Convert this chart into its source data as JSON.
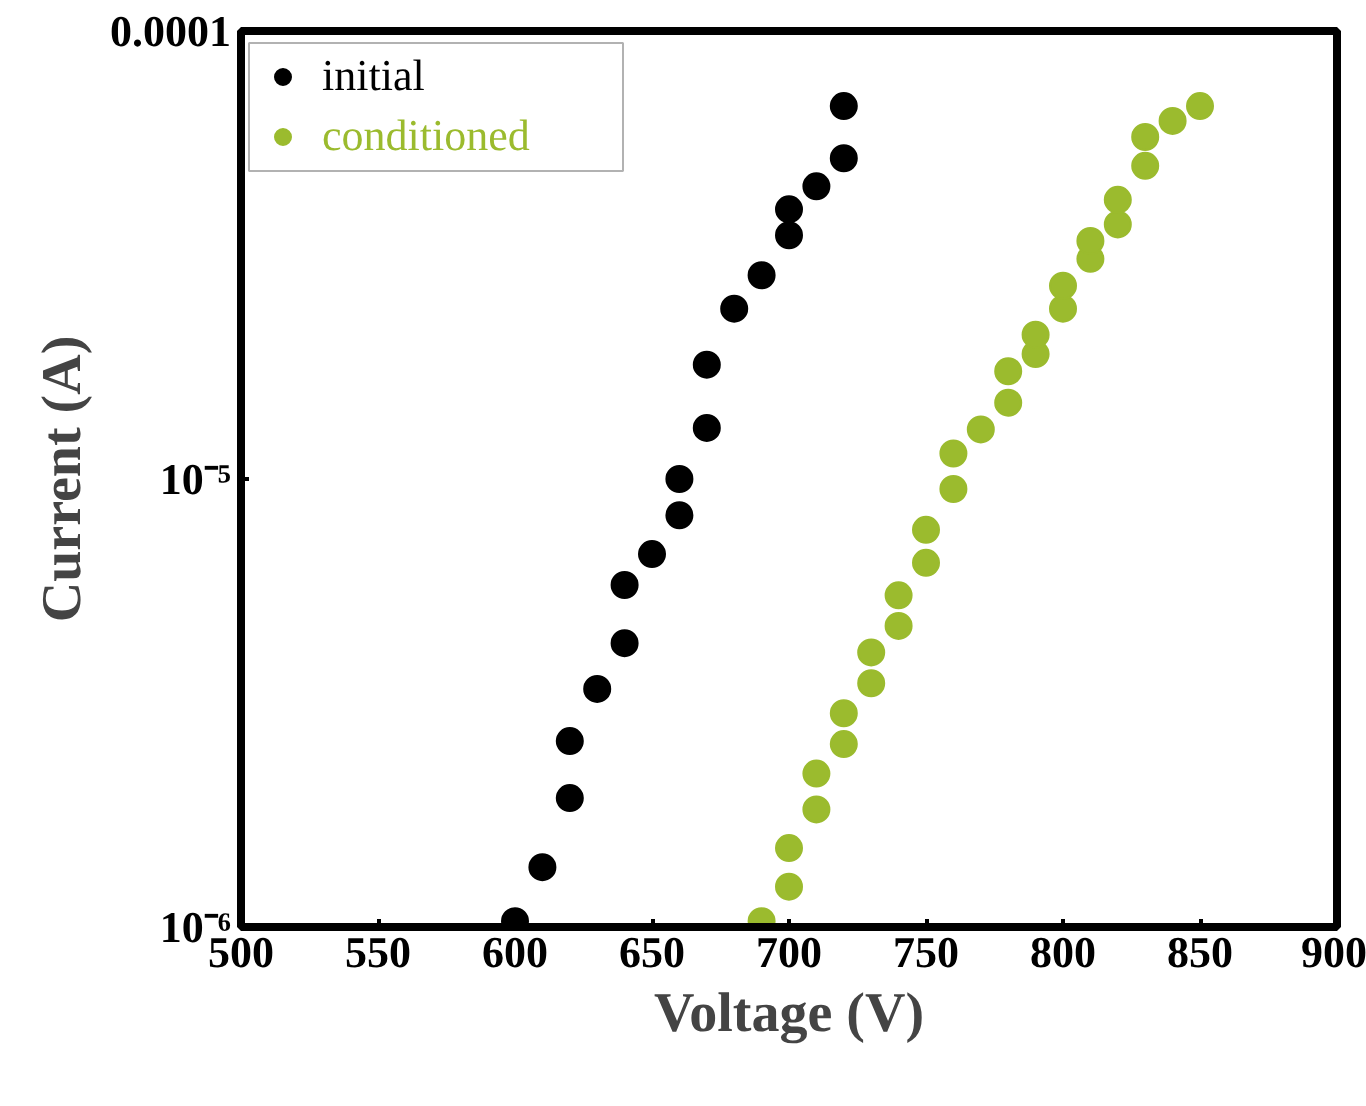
{
  "chart_data": {
    "type": "scatter",
    "xlabel": "Voltage (V)",
    "ylabel": "Current (A)",
    "xlim": [
      500,
      900
    ],
    "xticks": [
      500,
      550,
      600,
      650,
      700,
      750,
      800,
      850,
      900
    ],
    "ylim": [
      1e-06,
      0.0001
    ],
    "yticks": [
      {
        "value": 1e-06,
        "label": "10⁻⁶"
      },
      {
        "value": 1e-05,
        "label": "10⁻⁵"
      },
      {
        "value": 0.0001,
        "label": "0.0001"
      }
    ],
    "log": "y",
    "grid": false,
    "legend": "top left",
    "marker": "circle",
    "series": [
      {
        "name": "initial",
        "color": "#000000",
        "x": [
          600,
          610,
          620,
          620,
          630,
          640,
          640,
          650,
          660,
          660,
          670,
          670,
          680,
          690,
          700,
          700,
          710,
          720,
          720
        ],
        "values": [
          1.03e-06,
          1.36e-06,
          1.94e-06,
          2.6e-06,
          3.4e-06,
          4.3e-06,
          5.8e-06,
          6.8e-06,
          8.3e-06,
          1e-05,
          1.3e-05,
          1.8e-05,
          2.4e-05,
          2.85e-05,
          3.5e-05,
          4e-05,
          4.5e-05,
          5.2e-05,
          6.8e-05
        ]
      },
      {
        "name": "conditioned",
        "color": "#9bbb2e",
        "x": [
          690,
          700,
          700,
          710,
          710,
          720,
          720,
          730,
          730,
          740,
          740,
          750,
          750,
          760,
          760,
          770,
          780,
          780,
          790,
          790,
          800,
          800,
          810,
          810,
          820,
          820,
          830,
          830,
          840,
          850
        ],
        "values": [
          1.03e-06,
          1.23e-06,
          1.5e-06,
          1.83e-06,
          2.2e-06,
          2.56e-06,
          3e-06,
          3.5e-06,
          4.1e-06,
          4.7e-06,
          5.5e-06,
          6.5e-06,
          7.7e-06,
          9.5e-06,
          1.14e-05,
          1.29e-05,
          1.48e-05,
          1.74e-05,
          1.9e-05,
          2.1e-05,
          2.4e-05,
          2.7e-05,
          3.1e-05,
          3.4e-05,
          3.7e-05,
          4.2e-05,
          5e-05,
          5.8e-05,
          6.3e-05,
          6.8e-05
        ]
      }
    ]
  }
}
